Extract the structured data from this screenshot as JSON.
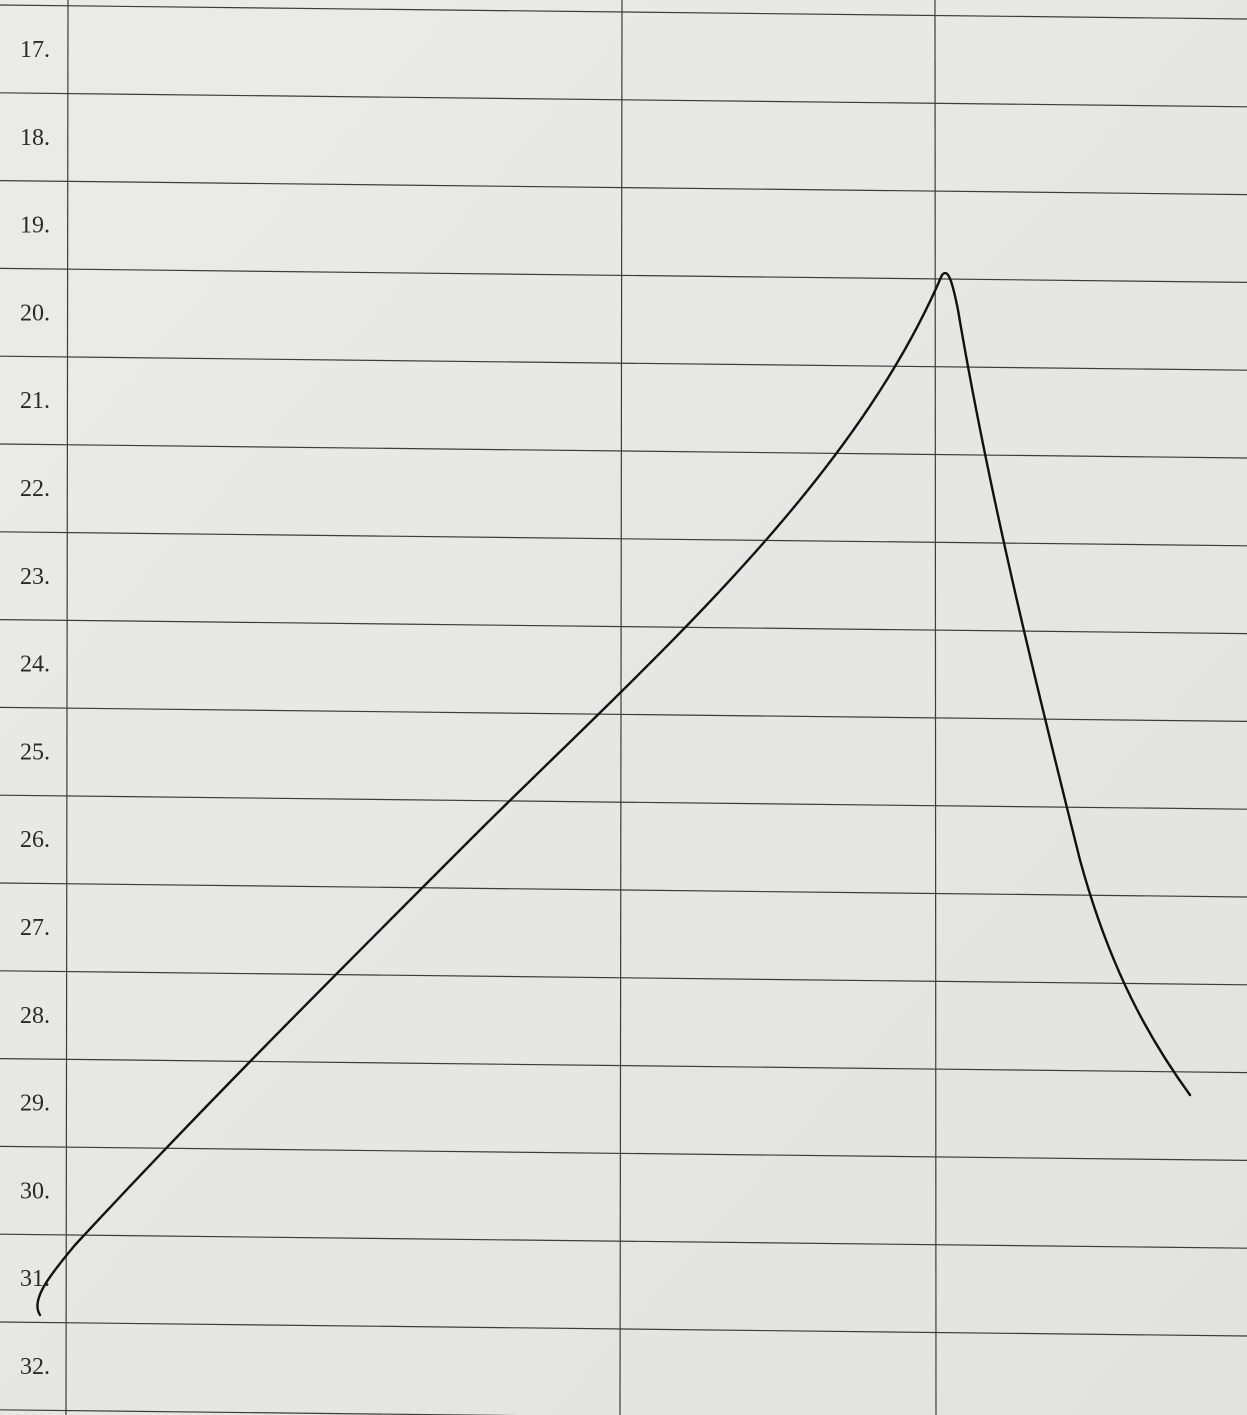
{
  "rows": [
    "17.",
    "18.",
    "19.",
    "20.",
    "21.",
    "22.",
    "23.",
    "24.",
    "25.",
    "26.",
    "27.",
    "28.",
    "29.",
    "30.",
    "31.",
    "32."
  ]
}
